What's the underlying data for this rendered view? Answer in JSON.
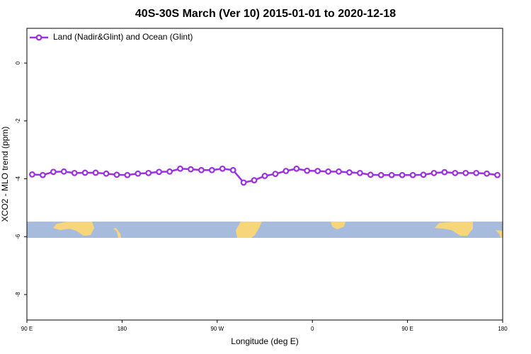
{
  "chart_data": {
    "type": "line",
    "title": "40S-30S March (Ver 10)   2015-01-01 to 2020-12-18",
    "x_label": "Longitude (deg E)",
    "y_label": "XCO2 - MLO trend (ppm)",
    "xlim": [
      90,
      540
    ],
    "ylim": [
      -8.88,
      1.2
    ],
    "xticks": [
      {
        "value": 90,
        "label": "90 E"
      },
      180,
      {
        "value": 270,
        "label": "90 W"
      },
      {
        "value": 360,
        "label": "0"
      },
      {
        "value": 450,
        "label": "90 E"
      },
      {
        "value": 540,
        "label": "180"
      }
    ],
    "yticks": [
      0,
      -2,
      -4,
      -6,
      -8
    ],
    "legend_position": "top-left",
    "x": [
      95,
      105,
      115,
      125,
      135,
      145,
      155,
      165,
      175,
      185,
      195,
      205,
      215,
      225,
      235,
      245,
      255,
      265,
      275,
      285,
      295,
      305,
      315,
      325,
      335,
      345,
      355,
      365,
      375,
      385,
      395,
      405,
      415,
      425,
      435,
      445,
      455,
      465,
      475,
      485,
      495,
      505,
      515,
      525,
      535
    ],
    "series": [
      {
        "name": "Land (Nadir&Glint) and Ocean (Glint)",
        "color": "#9b30e0",
        "values": [
          -3.85,
          -3.87,
          -3.76,
          -3.75,
          -3.8,
          -3.79,
          -3.79,
          -3.82,
          -3.86,
          -3.87,
          -3.82,
          -3.8,
          -3.76,
          -3.75,
          -3.65,
          -3.67,
          -3.7,
          -3.7,
          -3.65,
          -3.7,
          -4.13,
          -4.05,
          -3.9,
          -3.83,
          -3.73,
          -3.65,
          -3.72,
          -3.73,
          -3.75,
          -3.75,
          -3.78,
          -3.8,
          -3.86,
          -3.87,
          -3.87,
          -3.87,
          -3.87,
          -3.86,
          -3.8,
          -3.77,
          -3.8,
          -3.8,
          -3.8,
          -3.82,
          -3.87
        ]
      }
    ]
  }
}
